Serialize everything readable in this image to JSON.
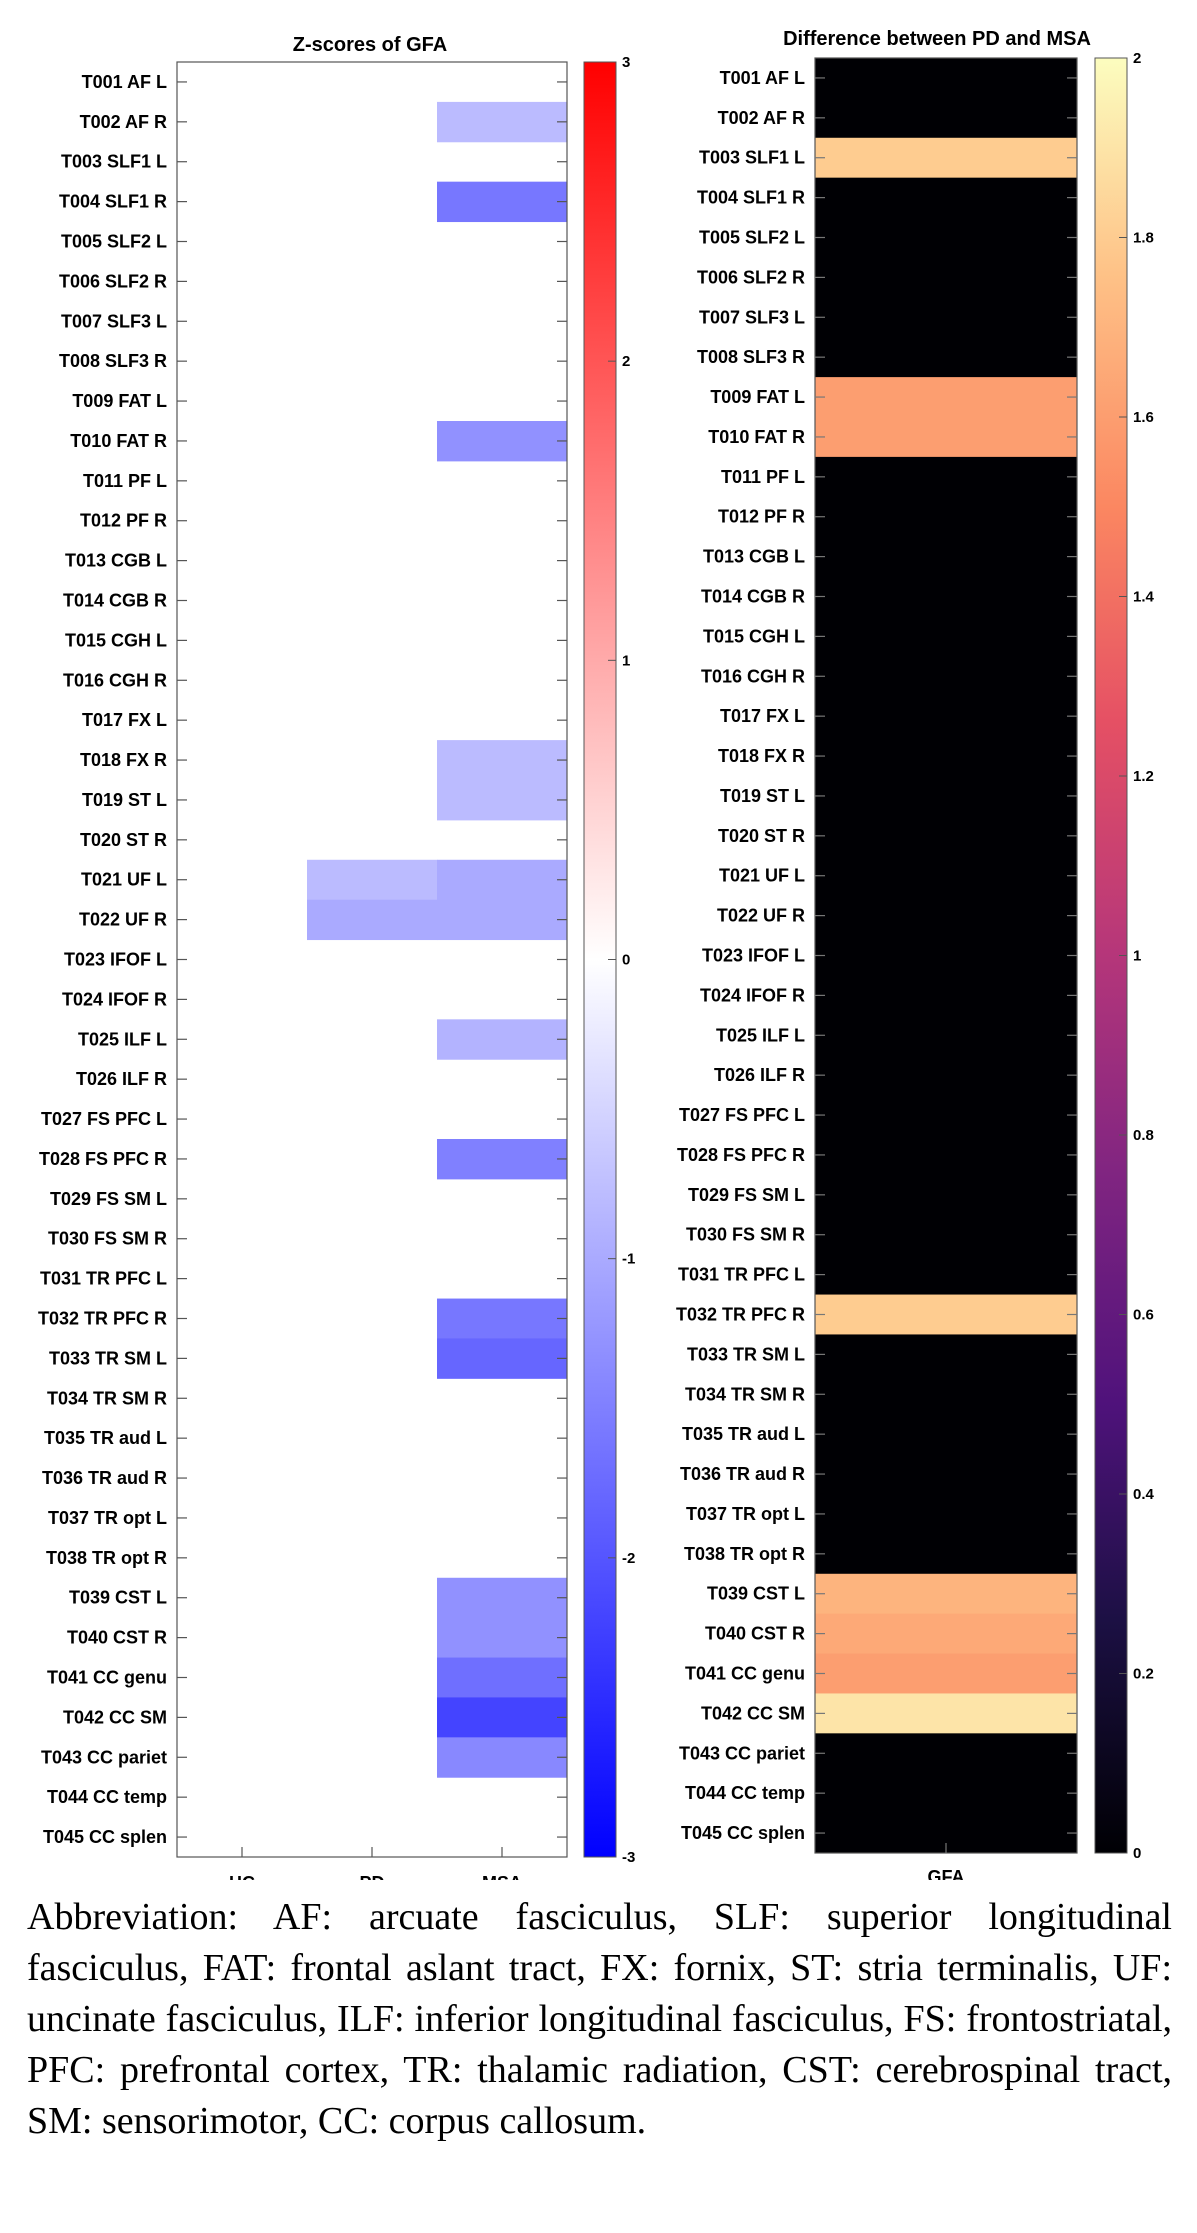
{
  "chart_data": [
    {
      "type": "heatmap",
      "title": "Z-scores of GFA",
      "columns": [
        "HC",
        "PD",
        "MSA"
      ],
      "rows": [
        "T001 AF L",
        "T002 AF R",
        "T003 SLF1 L",
        "T004 SLF1 R",
        "T005 SLF2 L",
        "T006 SLF2 R",
        "T007 SLF3 L",
        "T008 SLF3 R",
        "T009 FAT L",
        "T010 FAT R",
        "T011 PF L",
        "T012 PF R",
        "T013 CGB L",
        "T014 CGB R",
        "T015 CGH L",
        "T016 CGH R",
        "T017 FX L",
        "T018 FX R",
        "T019 ST L",
        "T020 ST R",
        "T021 UF L",
        "T022 UF R",
        "T023 IFOF L",
        "T024 IFOF R",
        "T025 ILF L",
        "T026 ILF R",
        "T027 FS PFC L",
        "T028 FS PFC R",
        "T029 FS SM L",
        "T030 FS SM R",
        "T031 TR PFC L",
        "T032 TR PFC R",
        "T033 TR SM L",
        "T034 TR SM R",
        "T035 TR aud L",
        "T036 TR aud R",
        "T037 TR opt L",
        "T038 TR opt R",
        "T039 CST L",
        "T040 CST R",
        "T041 CC genu",
        "T042 CC SM",
        "T043 CC pariet",
        "T044 CC temp",
        "T045 CC splen"
      ],
      "values": [
        [
          0,
          0,
          0
        ],
        [
          0,
          0,
          -0.8
        ],
        [
          0,
          0,
          0
        ],
        [
          0,
          0,
          -1.6
        ],
        [
          0,
          0,
          0
        ],
        [
          0,
          0,
          0
        ],
        [
          0,
          0,
          0
        ],
        [
          0,
          0,
          0
        ],
        [
          0,
          0,
          0
        ],
        [
          0,
          0,
          -1.3
        ],
        [
          0,
          0,
          0
        ],
        [
          0,
          0,
          0
        ],
        [
          0,
          0,
          0
        ],
        [
          0,
          0,
          0
        ],
        [
          0,
          0,
          0
        ],
        [
          0,
          0,
          0
        ],
        [
          0,
          0,
          0
        ],
        [
          0,
          0,
          -0.8
        ],
        [
          0,
          0,
          -0.8
        ],
        [
          0,
          0,
          0
        ],
        [
          0,
          -0.8,
          -1.0
        ],
        [
          0,
          -1.0,
          -1.0
        ],
        [
          0,
          0,
          0
        ],
        [
          0,
          0,
          0
        ],
        [
          0,
          0,
          -0.9
        ],
        [
          0,
          0,
          0
        ],
        [
          0,
          0,
          0
        ],
        [
          0,
          0,
          -1.5
        ],
        [
          0,
          0,
          0
        ],
        [
          0,
          0,
          0
        ],
        [
          0,
          0,
          0
        ],
        [
          0,
          0,
          -1.6
        ],
        [
          0,
          0,
          -1.8
        ],
        [
          0,
          0,
          0
        ],
        [
          0,
          0,
          0
        ],
        [
          0,
          0,
          0
        ],
        [
          0,
          0,
          0
        ],
        [
          0,
          0,
          0
        ],
        [
          0,
          0,
          -1.3
        ],
        [
          0,
          0,
          -1.3
        ],
        [
          0,
          0,
          -1.7
        ],
        [
          0,
          0,
          -2.2
        ],
        [
          0,
          0,
          -1.4
        ],
        [
          0,
          0,
          0
        ],
        [
          0,
          0,
          0
        ]
      ],
      "colorbar": {
        "min": -3,
        "max": 3,
        "ticks": [
          "3",
          "2",
          "1",
          "0",
          "-1",
          "-2",
          "-3"
        ]
      },
      "colors": {
        "min": "#0000ff",
        "mid": "#ffffff",
        "max": "#ff0000"
      }
    },
    {
      "type": "heatmap",
      "title": "Difference between PD and MSA",
      "columns": [
        "GFA"
      ],
      "rows": [
        "T001 AF L",
        "T002 AF R",
        "T003 SLF1 L",
        "T004 SLF1 R",
        "T005 SLF2 L",
        "T006 SLF2 R",
        "T007 SLF3 L",
        "T008 SLF3 R",
        "T009 FAT L",
        "T010 FAT R",
        "T011 PF L",
        "T012 PF R",
        "T013 CGB L",
        "T014 CGB R",
        "T015 CGH L",
        "T016 CGH R",
        "T017 FX L",
        "T018 FX R",
        "T019 ST L",
        "T020 ST R",
        "T021 UF L",
        "T022 UF R",
        "T023 IFOF L",
        "T024 IFOF R",
        "T025 ILF L",
        "T026 ILF R",
        "T027 FS PFC L",
        "T028 FS PFC R",
        "T029 FS SM L",
        "T030 FS SM R",
        "T031 TR PFC L",
        "T032 TR PFC R",
        "T033 TR SM L",
        "T034 TR SM R",
        "T035 TR aud L",
        "T036 TR aud R",
        "T037 TR opt L",
        "T038 TR opt R",
        "T039 CST L",
        "T040 CST R",
        "T041 CC genu",
        "T042 CC SM",
        "T043 CC pariet",
        "T044 CC temp",
        "T045 CC splen"
      ],
      "values": [
        0,
        0,
        1.8,
        0,
        0,
        0,
        0,
        0,
        1.6,
        1.6,
        0,
        0,
        0,
        0,
        0,
        0,
        0,
        0,
        0,
        0,
        0,
        0,
        0,
        0,
        0,
        0,
        0,
        0,
        0,
        0,
        0,
        1.8,
        0,
        0,
        0,
        0,
        0,
        0,
        1.7,
        1.65,
        1.6,
        1.9,
        0,
        0,
        0
      ],
      "colorbar": {
        "min": 0,
        "max": 2,
        "ticks": [
          "2",
          "1.8",
          "1.6",
          "1.4",
          "1.2",
          "1",
          "0.8",
          "0.6",
          "0.4",
          "0.2",
          "0"
        ]
      },
      "colormap": "magma"
    }
  ],
  "caption": "Abbreviation: AF: arcuate fasciculus, SLF: superior longitudinal fasciculus, FAT: frontal aslant tract, FX: fornix, ST: stria terminalis, UF: uncinate fasciculus, ILF: inferior longitudinal fasciculus, FS: frontostriatal, PFC: prefrontal cortex, TR: thalamic radiation, CST: cerebrospinal tract, SM: sensorimotor, CC: corpus callosum."
}
